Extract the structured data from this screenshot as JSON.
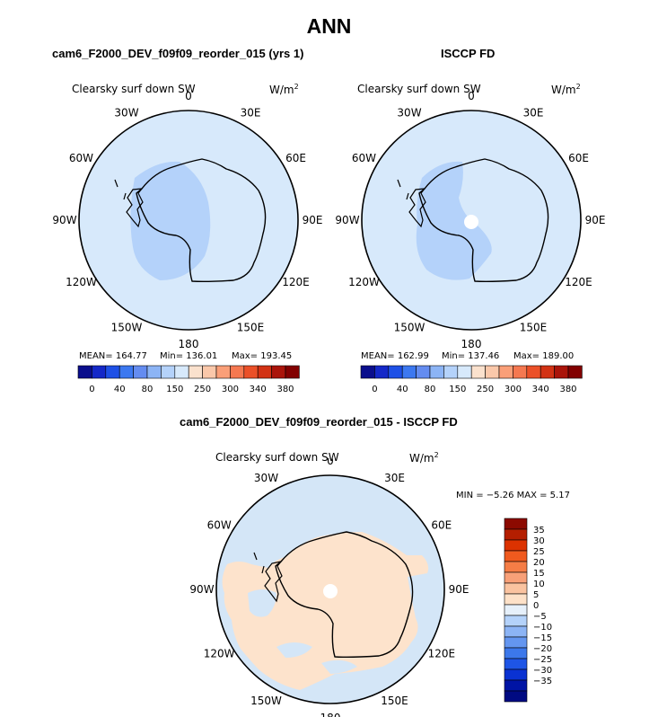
{
  "figure_title": "ANN",
  "panels": [
    {
      "title": "cam6_F2000_DEV_f09f09_reorder_015 (yrs 1)",
      "variable": "Clearsky surf down SW",
      "units": "W/m",
      "units_exp": "2",
      "stats": {
        "mean": "MEAN= 164.77",
        "min": "Min= 136.01",
        "max": "Max= 193.45"
      }
    },
    {
      "title": "ISCCP FD",
      "variable": "Clearsky surf down SW",
      "units": "W/m",
      "units_exp": "2",
      "stats": {
        "mean": "MEAN= 162.99",
        "min": "Min= 137.46",
        "max": "Max= 189.00"
      }
    },
    {
      "title": "cam6_F2000_DEV_f09f09_reorder_015 - ISCCP FD",
      "variable": "Clearsky surf down SW",
      "units": "W/m",
      "units_exp": "2",
      "minmax": "MIN =  −5.26 MAX =   5.17"
    }
  ],
  "longitude_labels": [
    "0",
    "30E",
    "60E",
    "90E",
    "120E",
    "150E",
    "180",
    "150W",
    "120W",
    "90W",
    "60W",
    "30W"
  ],
  "abs_colorbar": {
    "colors": [
      "#0a0e8c",
      "#1428c8",
      "#1e50e6",
      "#3c78f0",
      "#648cf0",
      "#8cb4f5",
      "#b4d2fa",
      "#d7e9fb",
      "#fae1cd",
      "#fac8aa",
      "#fa9f78",
      "#f57850",
      "#eb5028",
      "#d23214",
      "#aa140a",
      "#820000"
    ],
    "tick_labels": [
      "0",
      "40",
      "80",
      "150",
      "250",
      "300",
      "340",
      "380"
    ]
  },
  "diff_colorbar": {
    "colors_top_to_bottom": [
      "#8c0a00",
      "#b41e00",
      "#dc3200",
      "#f05a1e",
      "#f57d46",
      "#f8a078",
      "#fac3a0",
      "#fde1c8",
      "#e6f0fa",
      "#b4d2fa",
      "#8cb4f5",
      "#6496f0",
      "#3c78eb",
      "#1e55e6",
      "#0a32d2",
      "#0014a5",
      "#000a82"
    ],
    "tick_labels": [
      "35",
      "30",
      "25",
      "20",
      "15",
      "10",
      "5",
      "0",
      "−5",
      "−10",
      "−15",
      "−20",
      "−25",
      "−30",
      "−35"
    ]
  },
  "colors": {
    "ocean_abs": "#d7e9fb",
    "interior_abs": "#b4d2fa",
    "land_diff": "#fde3cc",
    "ocean_diff": "#d4e6f7"
  }
}
